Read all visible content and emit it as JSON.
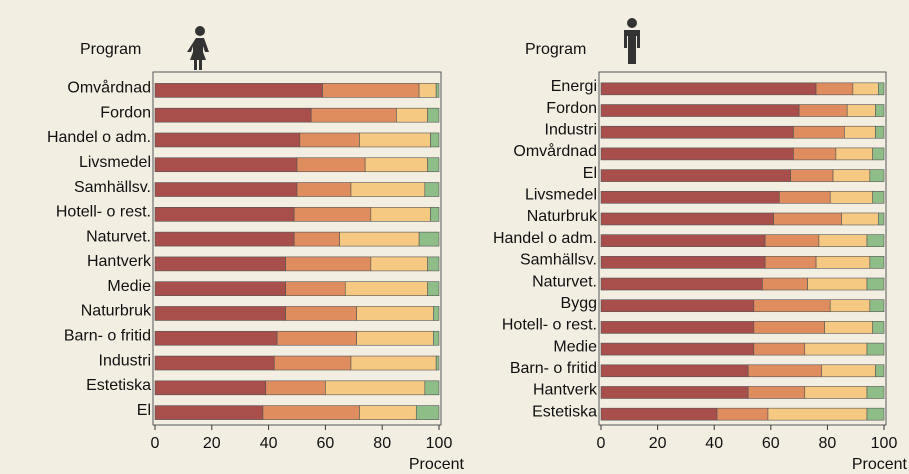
{
  "chart_data": [
    {
      "type": "bar",
      "orientation": "horizontal",
      "stacked": true,
      "ylabel": "Program",
      "xlabel": "Procent",
      "categories": [
        "Omvårdnad",
        "Fordon",
        "Handel o adm.",
        "Livsmedel",
        "Samhällsv.",
        "Hotell- o rest.",
        "Naturvet.",
        "Hantverk",
        "Medie",
        "Naturbruk",
        "Barn- o fritid",
        "Industri",
        "Estetiska",
        "El"
      ],
      "series": [
        {
          "color": "#a84f4c",
          "values": [
            59,
            55,
            51,
            50,
            50,
            49,
            49,
            46,
            46,
            46,
            43,
            42,
            39,
            38
          ]
        },
        {
          "color": "#df8c5f",
          "values": [
            34,
            30,
            21,
            24,
            19,
            27,
            16,
            30,
            21,
            25,
            28,
            27,
            21,
            34
          ]
        },
        {
          "color": "#f6c982",
          "values": [
            6,
            11,
            25,
            22,
            26,
            21,
            28,
            20,
            29,
            27,
            27,
            30,
            35,
            20
          ]
        },
        {
          "color": "#8fbd88",
          "values": [
            1,
            4,
            3,
            4,
            5,
            3,
            7,
            4,
            4,
            2,
            2,
            1,
            5,
            8
          ]
        }
      ],
      "xlim": [
        0,
        100
      ],
      "xticks": [
        0,
        20,
        40,
        60,
        80,
        100
      ]
    },
    {
      "type": "bar",
      "orientation": "horizontal",
      "stacked": true,
      "ylabel": "Program",
      "xlabel": "Procent",
      "categories": [
        "Energi",
        "Fordon",
        "Industri",
        "Omvårdnad",
        "El",
        "Livsmedel",
        "Naturbruk",
        "Handel o adm.",
        "Samhällsv.",
        "Naturvet.",
        "Bygg",
        "Hotell- o rest.",
        "Medie",
        "Barn- o fritid",
        "Hantverk",
        "Estetiska"
      ],
      "series": [
        {
          "color": "#a84f4c",
          "values": [
            76,
            70,
            68,
            68,
            67,
            63,
            61,
            58,
            58,
            57,
            54,
            54,
            54,
            52,
            52,
            41
          ]
        },
        {
          "color": "#df8c5f",
          "values": [
            13,
            17,
            18,
            15,
            15,
            18,
            24,
            19,
            18,
            16,
            27,
            25,
            18,
            26,
            20,
            18
          ]
        },
        {
          "color": "#f6c982",
          "values": [
            9,
            10,
            11,
            13,
            13,
            15,
            13,
            17,
            19,
            21,
            14,
            17,
            22,
            19,
            22,
            35
          ]
        },
        {
          "color": "#8fbd88",
          "values": [
            2,
            3,
            3,
            4,
            5,
            4,
            2,
            6,
            5,
            6,
            5,
            4,
            6,
            3,
            6,
            6
          ]
        }
      ],
      "xlim": [
        0,
        100
      ],
      "xticks": [
        0,
        20,
        40,
        60,
        80,
        100
      ]
    }
  ]
}
